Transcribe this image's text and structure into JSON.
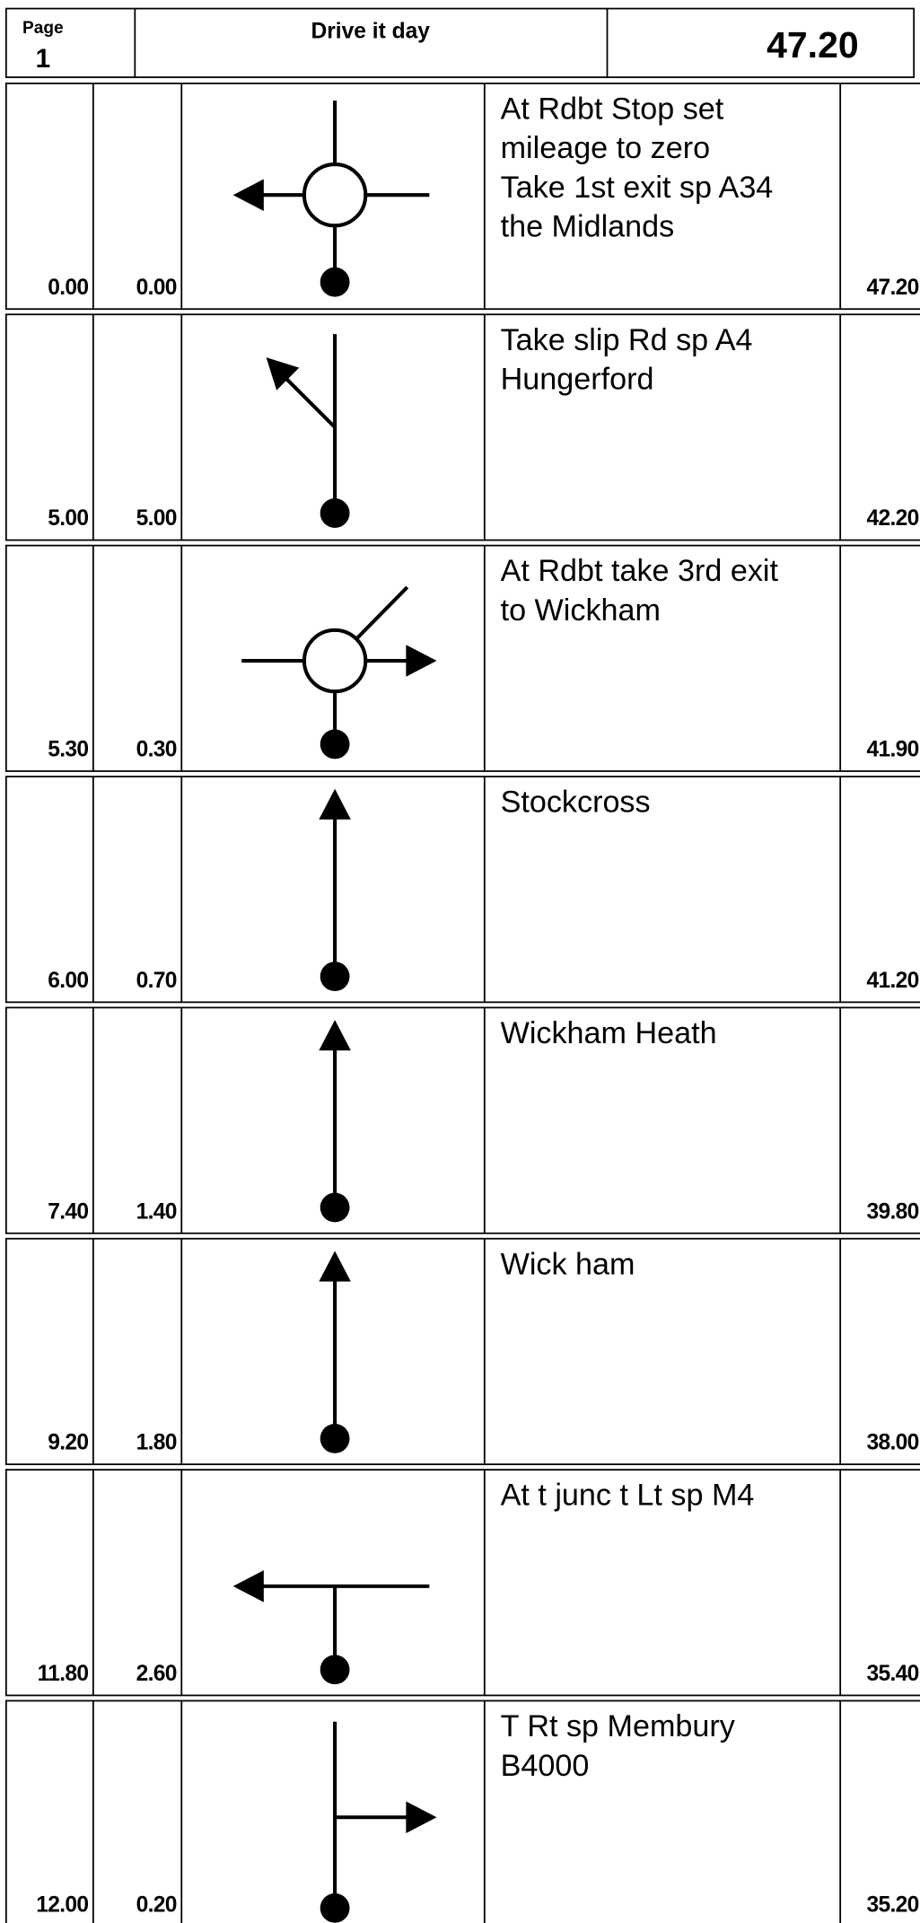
{
  "header": {
    "page_label": "Page",
    "page_number": "1",
    "title": "Drive it day",
    "total": "47.20"
  },
  "rows": [
    {
      "total": "0.00",
      "interval": "0.00",
      "instruction": [
        "At Rdbt Stop set",
        "mileage to zero",
        "Take 1st exit sp A34",
        "the Midlands"
      ],
      "remaining": "47.20"
    },
    {
      "total": "5.00",
      "interval": "5.00",
      "instruction": [
        "Take slip Rd sp A4",
        "Hungerford"
      ],
      "remaining": "42.20"
    },
    {
      "total": "5.30",
      "interval": "0.30",
      "instruction": [
        "At Rdbt take 3rd exit",
        "to Wickham"
      ],
      "remaining": "41.90"
    },
    {
      "total": "6.00",
      "interval": "0.70",
      "instruction": [
        "Stockcross"
      ],
      "remaining": "41.20"
    },
    {
      "total": "7.40",
      "interval": "1.40",
      "instruction": [
        "Wickham Heath"
      ],
      "remaining": "39.80"
    },
    {
      "total": "9.20",
      "interval": "1.80",
      "instruction": [
        "Wick ham"
      ],
      "remaining": "38.00"
    },
    {
      "total": "11.80",
      "interval": "2.60",
      "instruction": [
        "At t junc t Lt sp M4"
      ],
      "remaining": "35.40"
    },
    {
      "total": "12.00",
      "interval": "0.20",
      "instruction": [
        "T Rt sp Membury",
        "B4000"
      ],
      "remaining": "35.20"
    }
  ]
}
